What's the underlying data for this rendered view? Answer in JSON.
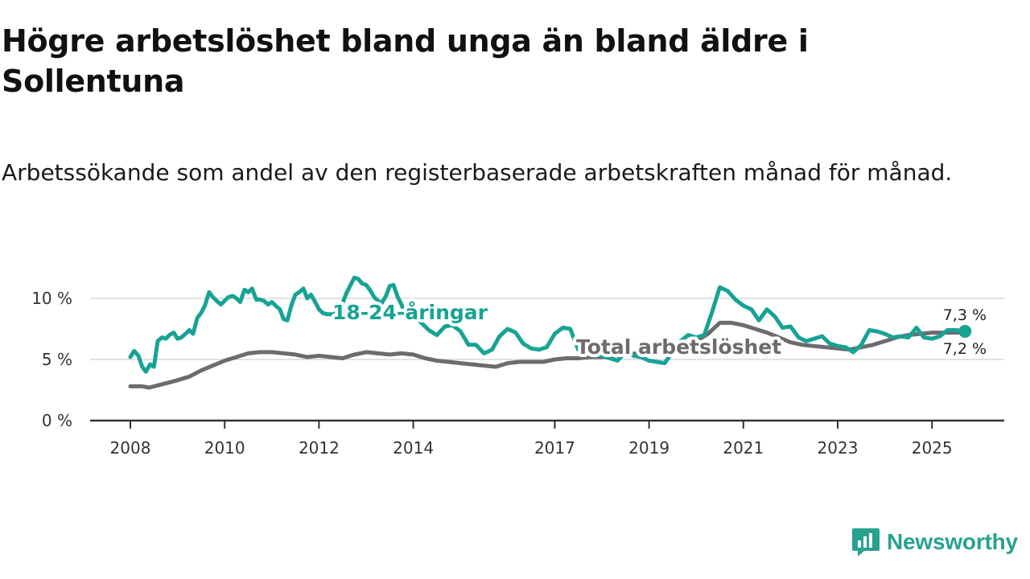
{
  "title": "Högre arbetslöshet bland unga än bland äldre i Sollentuna",
  "subtitle": "Arbetssökande som andel av den registerbaserade arbetskraften månad för månad.",
  "brand": {
    "name": "Newsworthy",
    "color": "#27a28f"
  },
  "chart_data": {
    "type": "line",
    "title": "Högre arbetslöshet bland unga än bland äldre i Sollentuna",
    "subtitle": "Arbetssökande som andel av den registerbaserade arbetskraften månad för månad.",
    "xlabel": "",
    "ylabel": "",
    "x_range": [
      2007.5,
      2026.8
    ],
    "ylim": [
      0,
      12.5
    ],
    "y_ticks": [
      0,
      5,
      10
    ],
    "y_tick_labels": [
      "0 %",
      "5 %",
      "10 %"
    ],
    "x_ticks": [
      2008,
      2010,
      2012,
      2014,
      2017,
      2019,
      2021,
      2023,
      2025
    ],
    "x_tick_labels": [
      "2008",
      "2010",
      "2012",
      "2014",
      "2017",
      "2019",
      "2021",
      "2023",
      "2025"
    ],
    "grid": "horizontal",
    "series": [
      {
        "name": "Total arbetslöshet",
        "color": "#6e6a6e",
        "end_label": "7,2 %",
        "points": [
          [
            2008.0,
            2.8
          ],
          [
            2008.25,
            2.8
          ],
          [
            2008.4,
            2.7
          ],
          [
            2008.6,
            2.9
          ],
          [
            2008.8,
            3.1
          ],
          [
            2009.0,
            3.3
          ],
          [
            2009.25,
            3.6
          ],
          [
            2009.5,
            4.1
          ],
          [
            2009.75,
            4.5
          ],
          [
            2010.0,
            4.9
          ],
          [
            2010.25,
            5.2
          ],
          [
            2010.5,
            5.5
          ],
          [
            2010.75,
            5.6
          ],
          [
            2011.0,
            5.6
          ],
          [
            2011.25,
            5.5
          ],
          [
            2011.5,
            5.4
          ],
          [
            2011.75,
            5.2
          ],
          [
            2012.0,
            5.3
          ],
          [
            2012.25,
            5.2
          ],
          [
            2012.5,
            5.1
          ],
          [
            2012.75,
            5.4
          ],
          [
            2013.0,
            5.6
          ],
          [
            2013.25,
            5.5
          ],
          [
            2013.5,
            5.4
          ],
          [
            2013.75,
            5.5
          ],
          [
            2014.0,
            5.4
          ],
          [
            2014.25,
            5.1
          ],
          [
            2014.5,
            4.9
          ],
          [
            2014.75,
            4.8
          ],
          [
            2015.0,
            4.7
          ],
          [
            2015.25,
            4.6
          ],
          [
            2015.5,
            4.5
          ],
          [
            2015.75,
            4.4
          ],
          [
            2016.0,
            4.7
          ],
          [
            2016.25,
            4.8
          ],
          [
            2016.5,
            4.8
          ],
          [
            2016.75,
            4.8
          ],
          [
            2017.0,
            5.0
          ],
          [
            2017.25,
            5.1
          ],
          [
            2017.5,
            5.1
          ],
          [
            2017.75,
            5.2
          ],
          [
            2018.0,
            5.2
          ],
          [
            2018.25,
            5.3
          ],
          [
            2018.5,
            5.4
          ],
          [
            2018.75,
            5.5
          ],
          [
            2019.0,
            5.6
          ],
          [
            2019.25,
            5.6
          ],
          [
            2019.5,
            5.7
          ],
          [
            2019.75,
            6.0
          ],
          [
            2020.0,
            6.5
          ],
          [
            2020.25,
            7.1
          ],
          [
            2020.5,
            8.0
          ],
          [
            2020.75,
            8.0
          ],
          [
            2021.0,
            7.8
          ],
          [
            2021.25,
            7.5
          ],
          [
            2021.5,
            7.2
          ],
          [
            2021.75,
            6.8
          ],
          [
            2022.0,
            6.4
          ],
          [
            2022.25,
            6.2
          ],
          [
            2022.5,
            6.1
          ],
          [
            2022.75,
            6.0
          ],
          [
            2023.0,
            5.9
          ],
          [
            2023.25,
            5.8
          ],
          [
            2023.5,
            6.0
          ],
          [
            2023.75,
            6.2
          ],
          [
            2024.0,
            6.5
          ],
          [
            2024.25,
            6.8
          ],
          [
            2024.5,
            7.0
          ],
          [
            2024.75,
            7.1
          ],
          [
            2025.0,
            7.2
          ],
          [
            2025.25,
            7.2
          ],
          [
            2025.5,
            7.2
          ],
          [
            2025.7,
            7.2
          ]
        ]
      },
      {
        "name": "18-24-åringar",
        "color": "#17a394",
        "end_label": "7,3 %",
        "points": [
          [
            2008.0,
            5.2
          ],
          [
            2008.08,
            5.7
          ],
          [
            2008.17,
            5.3
          ],
          [
            2008.25,
            4.4
          ],
          [
            2008.33,
            4.0
          ],
          [
            2008.42,
            4.6
          ],
          [
            2008.5,
            4.4
          ],
          [
            2008.58,
            6.5
          ],
          [
            2008.67,
            6.8
          ],
          [
            2008.75,
            6.7
          ],
          [
            2008.83,
            7.0
          ],
          [
            2008.92,
            7.2
          ],
          [
            2009.0,
            6.7
          ],
          [
            2009.08,
            6.8
          ],
          [
            2009.17,
            7.1
          ],
          [
            2009.25,
            7.4
          ],
          [
            2009.33,
            7.1
          ],
          [
            2009.42,
            8.4
          ],
          [
            2009.5,
            8.8
          ],
          [
            2009.58,
            9.4
          ],
          [
            2009.67,
            10.5
          ],
          [
            2009.75,
            10.1
          ],
          [
            2009.83,
            9.8
          ],
          [
            2009.92,
            9.5
          ],
          [
            2010.0,
            9.8
          ],
          [
            2010.08,
            10.1
          ],
          [
            2010.17,
            10.2
          ],
          [
            2010.25,
            10.0
          ],
          [
            2010.33,
            9.7
          ],
          [
            2010.42,
            10.7
          ],
          [
            2010.5,
            10.5
          ],
          [
            2010.58,
            10.8
          ],
          [
            2010.67,
            9.9
          ],
          [
            2010.75,
            9.9
          ],
          [
            2010.83,
            9.8
          ],
          [
            2010.92,
            9.5
          ],
          [
            2011.0,
            9.7
          ],
          [
            2011.08,
            9.4
          ],
          [
            2011.17,
            9.1
          ],
          [
            2011.25,
            8.3
          ],
          [
            2011.33,
            8.2
          ],
          [
            2011.42,
            9.5
          ],
          [
            2011.5,
            10.3
          ],
          [
            2011.58,
            10.5
          ],
          [
            2011.67,
            10.8
          ],
          [
            2011.75,
            10.0
          ],
          [
            2011.83,
            10.3
          ],
          [
            2011.92,
            9.7
          ],
          [
            2012.0,
            9.1
          ],
          [
            2012.08,
            8.8
          ],
          [
            2012.17,
            8.7
          ],
          [
            2012.33,
            8.7
          ],
          [
            2012.5,
            9.6
          ],
          [
            2012.58,
            10.4
          ],
          [
            2012.67,
            11.1
          ],
          [
            2012.75,
            11.7
          ],
          [
            2012.83,
            11.6
          ],
          [
            2012.92,
            11.2
          ],
          [
            2013.0,
            11.1
          ],
          [
            2013.08,
            10.7
          ],
          [
            2013.17,
            10.1
          ],
          [
            2013.25,
            9.8
          ],
          [
            2013.33,
            9.6
          ],
          [
            2013.42,
            10.2
          ],
          [
            2013.5,
            11.0
          ],
          [
            2013.58,
            11.1
          ],
          [
            2013.67,
            10.1
          ],
          [
            2013.75,
            9.5
          ],
          [
            2013.83,
            8.7
          ],
          [
            2013.92,
            8.6
          ],
          [
            2014.0,
            8.5
          ],
          [
            2014.17,
            8.0
          ],
          [
            2014.33,
            7.4
          ],
          [
            2014.5,
            7.0
          ],
          [
            2014.67,
            7.7
          ],
          [
            2014.83,
            7.8
          ],
          [
            2015.0,
            7.3
          ],
          [
            2015.17,
            6.2
          ],
          [
            2015.33,
            6.2
          ],
          [
            2015.5,
            5.5
          ],
          [
            2015.67,
            5.8
          ],
          [
            2015.83,
            6.9
          ],
          [
            2016.0,
            7.5
          ],
          [
            2016.17,
            7.2
          ],
          [
            2016.33,
            6.3
          ],
          [
            2016.5,
            5.9
          ],
          [
            2016.67,
            5.8
          ],
          [
            2016.83,
            6.0
          ],
          [
            2017.0,
            7.1
          ],
          [
            2017.17,
            7.6
          ],
          [
            2017.33,
            7.5
          ],
          [
            2017.5,
            5.8
          ],
          [
            2017.67,
            5.4
          ],
          [
            2017.83,
            5.5
          ],
          [
            2018.0,
            5.3
          ],
          [
            2018.17,
            5.1
          ],
          [
            2018.33,
            4.9
          ],
          [
            2018.5,
            5.6
          ],
          [
            2018.67,
            5.3
          ],
          [
            2018.83,
            5.2
          ],
          [
            2019.0,
            4.9
          ],
          [
            2019.17,
            4.8
          ],
          [
            2019.33,
            4.7
          ],
          [
            2019.5,
            5.6
          ],
          [
            2019.67,
            6.5
          ],
          [
            2019.83,
            7.0
          ],
          [
            2020.0,
            6.8
          ],
          [
            2020.17,
            7.0
          ],
          [
            2020.33,
            8.8
          ],
          [
            2020.5,
            10.9
          ],
          [
            2020.67,
            10.6
          ],
          [
            2020.83,
            9.9
          ],
          [
            2021.0,
            9.4
          ],
          [
            2021.17,
            9.1
          ],
          [
            2021.33,
            8.2
          ],
          [
            2021.5,
            9.1
          ],
          [
            2021.67,
            8.5
          ],
          [
            2021.83,
            7.6
          ],
          [
            2022.0,
            7.7
          ],
          [
            2022.17,
            6.8
          ],
          [
            2022.33,
            6.5
          ],
          [
            2022.5,
            6.7
          ],
          [
            2022.67,
            6.9
          ],
          [
            2022.83,
            6.3
          ],
          [
            2023.0,
            6.1
          ],
          [
            2023.17,
            6.0
          ],
          [
            2023.33,
            5.6
          ],
          [
            2023.5,
            6.2
          ],
          [
            2023.67,
            7.4
          ],
          [
            2023.83,
            7.3
          ],
          [
            2024.0,
            7.1
          ],
          [
            2024.17,
            6.8
          ],
          [
            2024.33,
            6.9
          ],
          [
            2024.5,
            6.8
          ],
          [
            2024.67,
            7.6
          ],
          [
            2024.83,
            6.8
          ],
          [
            2025.0,
            6.7
          ],
          [
            2025.17,
            6.9
          ],
          [
            2025.33,
            7.4
          ],
          [
            2025.5,
            7.4
          ],
          [
            2025.7,
            7.3
          ]
        ]
      }
    ]
  }
}
